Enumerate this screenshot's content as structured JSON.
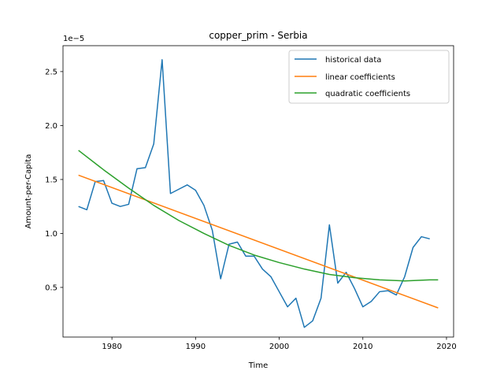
{
  "chart_data": {
    "type": "line",
    "title": "copper_prim - Serbia",
    "xlabel": "Time",
    "ylabel": "Amount-per-Capita",
    "y_scale_label": "1e−5",
    "xlim": [
      1974.15,
      2020.85
    ],
    "ylim": [
      4e-07,
      2.74e-05
    ],
    "x_ticks": [
      1980,
      1990,
      2000,
      2010,
      2020
    ],
    "x_tick_labels": [
      "1980",
      "1990",
      "2000",
      "2010",
      "2020"
    ],
    "y_ticks": [
      5e-06,
      1e-05,
      1.5e-05,
      2e-05,
      2.5e-05
    ],
    "y_tick_labels": [
      "0.5",
      "1.0",
      "1.5",
      "2.0",
      "2.5"
    ],
    "grid": false,
    "legend_position": "top-right",
    "series": [
      {
        "name": "historical data",
        "color": "#1f77b4",
        "x": [
          1976,
          1977,
          1978,
          1979,
          1980,
          1981,
          1982,
          1983,
          1984,
          1985,
          1986,
          1987,
          1988,
          1989,
          1990,
          1991,
          1992,
          1993,
          1994,
          1995,
          1996,
          1997,
          1998,
          1999,
          2000,
          2001,
          2002,
          2003,
          2004,
          2005,
          2006,
          2007,
          2008,
          2009,
          2010,
          2011,
          2012,
          2013,
          2014,
          2015,
          2016,
          2017,
          2018
        ],
        "y": [
          1.25e-05,
          1.22e-05,
          1.48e-05,
          1.49e-05,
          1.28e-05,
          1.25e-05,
          1.27e-05,
          1.6e-05,
          1.61e-05,
          1.83e-05,
          2.61e-05,
          1.37e-05,
          1.41e-05,
          1.45e-05,
          1.4e-05,
          1.26e-05,
          1.03e-05,
          5.8e-06,
          9e-06,
          9.2e-06,
          7.9e-06,
          7.9e-06,
          6.7e-06,
          6e-06,
          4.6e-06,
          3.2e-06,
          4e-06,
          1.3e-06,
          1.9e-06,
          4e-06,
          1.08e-05,
          5.4e-06,
          6.4e-06,
          4.9e-06,
          3.2e-06,
          3.7e-06,
          4.6e-06,
          4.7e-06,
          4.3e-06,
          6e-06,
          8.7e-06,
          9.7e-06,
          9.5e-06
        ]
      },
      {
        "name": "linear coefficients",
        "color": "#ff7f0e",
        "x": [
          1976,
          2019
        ],
        "y": [
          1.54e-05,
          3.1e-06
        ]
      },
      {
        "name": "quadratic coefficients",
        "color": "#2ca02c",
        "x": [
          1976,
          1979,
          1982,
          1985,
          1988,
          1991,
          1994,
          1997,
          2000,
          2003,
          2006,
          2009,
          2012,
          2015,
          2018,
          2019
        ],
        "y": [
          1.77e-05,
          1.59e-05,
          1.42e-05,
          1.26e-05,
          1.12e-05,
          1e-05,
          8.9e-06,
          8e-06,
          7.3e-06,
          6.7e-06,
          6.2e-06,
          5.9e-06,
          5.7e-06,
          5.6e-06,
          5.7e-06,
          5.7e-06
        ]
      }
    ]
  }
}
